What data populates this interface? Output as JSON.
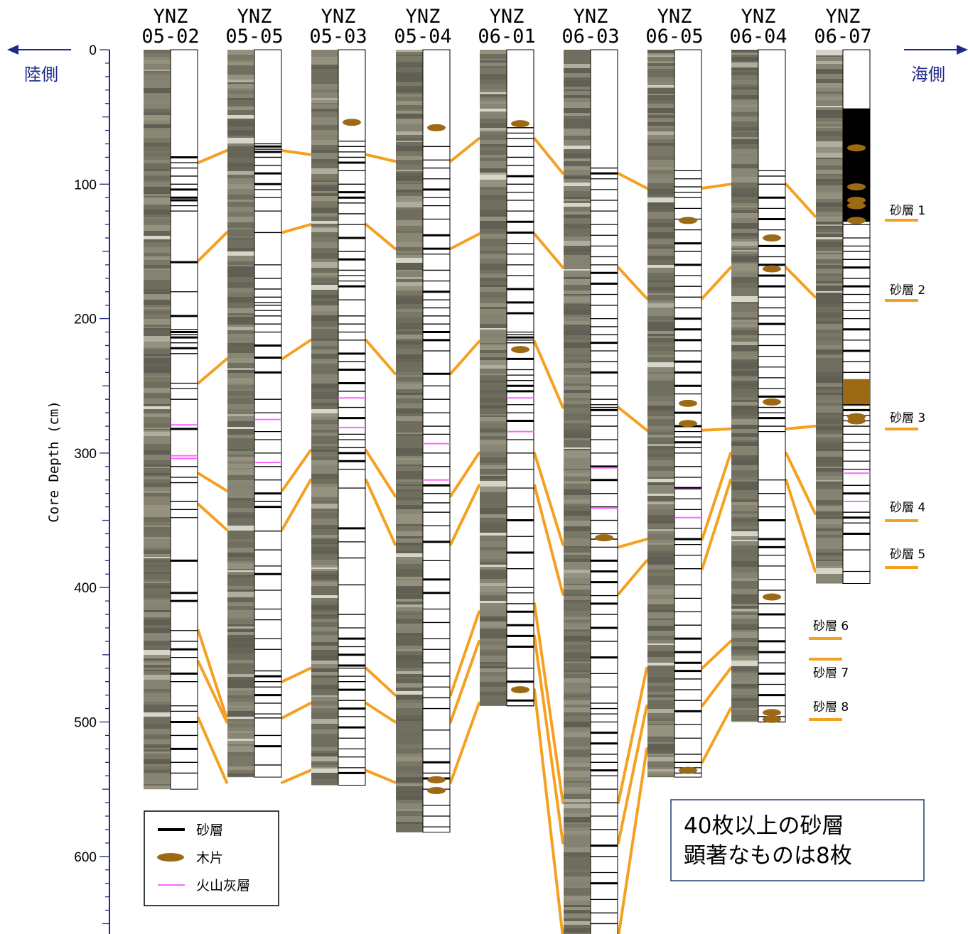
{
  "left_side_label": "陸側",
  "right_side_label": "海側",
  "axis": {
    "title": "Core Depth (cm)",
    "range": [
      0,
      660
    ],
    "ticks": [
      0,
      100,
      200,
      300,
      400,
      500,
      600
    ]
  },
  "cores": [
    {
      "line1": "YNZ",
      "line2": "05-02",
      "depth": 550,
      "sand": [
        80,
        84,
        88,
        94,
        100,
        104,
        110,
        112,
        116,
        120,
        158,
        180,
        198,
        208,
        210,
        212,
        214,
        218,
        222,
        226,
        248,
        252,
        260,
        282,
        310,
        318,
        322,
        336,
        342,
        348,
        380,
        404,
        410,
        432,
        440,
        446,
        452,
        464,
        470,
        488,
        492,
        500,
        510,
        520,
        530,
        538
      ],
      "ash": [
        279,
        302,
        304
      ],
      "wood": []
    },
    {
      "line1": "YNZ",
      "line2": "05-05",
      "depth": 541,
      "sand": [
        70,
        72,
        74,
        76,
        80,
        86,
        92,
        100,
        104,
        110,
        120,
        136,
        160,
        170,
        178,
        184,
        188,
        190,
        194,
        198,
        204,
        210,
        220,
        229,
        240,
        260,
        270,
        284,
        290,
        300,
        310,
        320,
        330,
        336,
        340,
        358,
        372,
        384,
        390,
        402,
        416,
        424,
        438,
        446,
        462,
        466,
        470,
        474,
        480,
        486,
        494,
        497,
        510,
        518,
        532
      ],
      "ash": [
        275,
        307
      ],
      "wood": []
    },
    {
      "line1": "YNZ",
      "line2": "05-03",
      "depth": 547,
      "sand": [
        68,
        72,
        76,
        80,
        84,
        90,
        100,
        106,
        110,
        114,
        122,
        130,
        140,
        150,
        156,
        164,
        168,
        172,
        176,
        186,
        198,
        204,
        210,
        216,
        226,
        232,
        238,
        248,
        254,
        266,
        274,
        286,
        290,
        296,
        300,
        306,
        312,
        326,
        356,
        366,
        378,
        398,
        420,
        430,
        438,
        444,
        450,
        458,
        460,
        466,
        470,
        476,
        484,
        490,
        496,
        504,
        512,
        520,
        526,
        534,
        538
      ],
      "ash": [
        259,
        281
      ],
      "wood": [
        54
      ]
    },
    {
      "line1": "YNZ",
      "line2": "05-04",
      "depth": 582,
      "sand": [
        72,
        82,
        88,
        96,
        104,
        110,
        116,
        126,
        138,
        148,
        152,
        164,
        172,
        180,
        186,
        192,
        198,
        204,
        210,
        216,
        224,
        241,
        250,
        260,
        270,
        280,
        286,
        300,
        310,
        324,
        330,
        337,
        344,
        354,
        366,
        380,
        394,
        404,
        416,
        426,
        438,
        446,
        456,
        466,
        474,
        482,
        490,
        506,
        520,
        530,
        538,
        542,
        550,
        562,
        570,
        578
      ],
      "ash": [
        293,
        320
      ],
      "wood": [
        58,
        543,
        551
      ]
    },
    {
      "line1": "YNZ",
      "line2": "06-01",
      "depth": 488,
      "sand": [
        58,
        62,
        66,
        72,
        80,
        86,
        94,
        100,
        106,
        112,
        120,
        128,
        136,
        144,
        152,
        160,
        168,
        178,
        188,
        196,
        210,
        212,
        214,
        216,
        218,
        230,
        238,
        242,
        246,
        250,
        254,
        264,
        270,
        276,
        290,
        300,
        312,
        326,
        340,
        350,
        362,
        374,
        386,
        400,
        404,
        412,
        418,
        428,
        436,
        444,
        460,
        470,
        484,
        488
      ],
      "ash": [
        259,
        284
      ],
      "wood": [
        55,
        223,
        476
      ]
    },
    {
      "line1": "YNZ",
      "line2": "06-03",
      "depth": 660,
      "sand": [
        88,
        92,
        96,
        104,
        112,
        120,
        130,
        138,
        146,
        154,
        160,
        166,
        174,
        182,
        190,
        200,
        206,
        212,
        218,
        224,
        232,
        240,
        250,
        260,
        264,
        266,
        268,
        272,
        280,
        290,
        300,
        310,
        320,
        330,
        340,
        350,
        360,
        364,
        370,
        380,
        388,
        396,
        406,
        412,
        420,
        430,
        440,
        452,
        464,
        474,
        486,
        490,
        494,
        500,
        508,
        516,
        524,
        530,
        536,
        540,
        550,
        560,
        570,
        580,
        592,
        600,
        612,
        620,
        632,
        642,
        650
      ],
      "ash": [
        311,
        341
      ],
      "wood": [
        363
      ]
    },
    {
      "line1": "YNZ",
      "line2": "06-05",
      "depth": 541,
      "sand": [
        90,
        96,
        102,
        106,
        110,
        118,
        126,
        134,
        144,
        150,
        160,
        168,
        176,
        184,
        192,
        200,
        208,
        216,
        224,
        232,
        240,
        250,
        256,
        270,
        280,
        284,
        288,
        292,
        296,
        300,
        310,
        318,
        326,
        334,
        342,
        356,
        364,
        368,
        376,
        386,
        398,
        408,
        418,
        428,
        438,
        448,
        456,
        462,
        468,
        476,
        484,
        492,
        502,
        512,
        524,
        530,
        534,
        538
      ],
      "ash": [
        327,
        348
      ],
      "wood": [
        127,
        263,
        278,
        536
      ]
    },
    {
      "line1": "YNZ",
      "line2": "06-04",
      "depth": 500,
      "sand": [
        90,
        94,
        100,
        110,
        118,
        126,
        134,
        146,
        154,
        160,
        168,
        176,
        184,
        192,
        198,
        204,
        212,
        220,
        228,
        236,
        244,
        252,
        258,
        266,
        270,
        274,
        280,
        284,
        320,
        330,
        340,
        350,
        364,
        370,
        376,
        384,
        394,
        402,
        412,
        420,
        430,
        440,
        448,
        456,
        464,
        472,
        480,
        488,
        496,
        500
      ],
      "ash": [],
      "wood": [
        140,
        163,
        262,
        407,
        493,
        498
      ]
    },
    {
      "line1": "YNZ",
      "line2": "06-07",
      "depth": 397,
      "sand": [
        44,
        60,
        80,
        100,
        110,
        118,
        124,
        130,
        140,
        146,
        150,
        156,
        162,
        170,
        176,
        182,
        188,
        194,
        200,
        208,
        216,
        224,
        232,
        240,
        264,
        268,
        272,
        276,
        280,
        286,
        292,
        298,
        306,
        312,
        324,
        330,
        344,
        348,
        352,
        360,
        372,
        388
      ],
      "ash": [
        315,
        336
      ],
      "wood": [
        73,
        102,
        112,
        116,
        127,
        273,
        276
      ],
      "black_blocks": [
        [
          44,
          128
        ]
      ],
      "brown_blocks": [
        [
          245,
          265
        ]
      ]
    }
  ],
  "sand_layer_labels": [
    "砂層 1",
    "砂層 2",
    "砂層 3",
    "砂層 4",
    "砂層 5",
    "砂層 6",
    "砂層 7",
    "砂層 8"
  ],
  "legend": {
    "sand": "砂層",
    "wood": "木片",
    "ash": "火山灰層"
  },
  "note": {
    "line1": "40枚以上の砂層",
    "line2": "顕著なものは8枚"
  },
  "colors": {
    "correlation": "#f5a020",
    "wood": "#9c6a14",
    "ash": "#ff66ff",
    "axis": "#1f2a8c",
    "sand": "#000000"
  }
}
